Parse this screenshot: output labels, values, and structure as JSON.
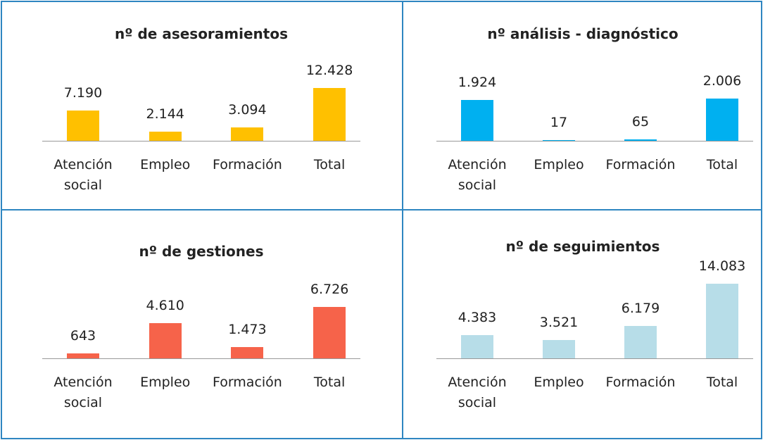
{
  "chart_data": [
    {
      "type": "bar",
      "title": "nº de asesoramientos",
      "categories": [
        "Atención social",
        "Empleo",
        "Formación",
        "Total"
      ],
      "values": [
        7190,
        2144,
        3094,
        12428
      ],
      "value_labels": [
        "7.190",
        "2.144",
        "3.094",
        "12.428"
      ],
      "color": "#ffc000",
      "ylim": [
        0,
        20000
      ]
    },
    {
      "type": "bar",
      "title": "nº análisis - diagnóstico",
      "categories": [
        "Atención social",
        "Empleo",
        "Formación",
        "Total"
      ],
      "values": [
        1924,
        17,
        65,
        2006
      ],
      "value_labels": [
        "1.924",
        "17",
        "65",
        "2.006"
      ],
      "color": "#00b0f0",
      "ylim": [
        0,
        4000
      ]
    },
    {
      "type": "bar",
      "title": "nº de gestiones",
      "categories": [
        "Atención social",
        "Empleo",
        "Formación",
        "Total"
      ],
      "values": [
        643,
        4610,
        1473,
        6726
      ],
      "value_labels": [
        "643",
        "4.610",
        "1.473",
        "6.726"
      ],
      "color": "#f6634a",
      "ylim": [
        0,
        11000
      ]
    },
    {
      "type": "bar",
      "title": "nº de seguimientos",
      "categories": [
        "Atención social",
        "Empleo",
        "Formación",
        "Total"
      ],
      "values": [
        4383,
        3521,
        6179,
        14083
      ],
      "value_labels": [
        "4.383",
        "3.521",
        "6.179",
        "14.083"
      ],
      "color": "#b7dde8",
      "ylim": [
        0,
        16000
      ]
    }
  ]
}
